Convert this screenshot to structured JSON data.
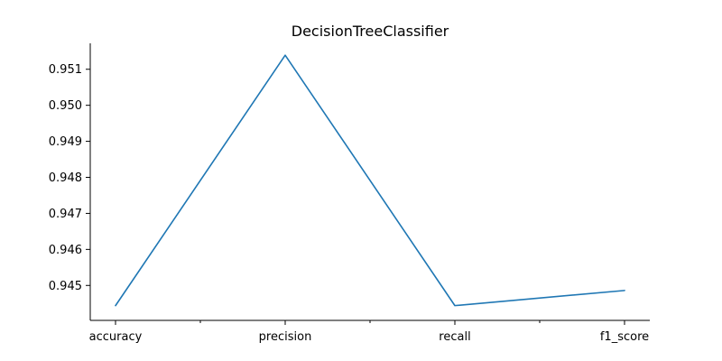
{
  "chart_data": {
    "type": "line",
    "title": "DecisionTreeClassifier",
    "xlabel": "",
    "ylabel": "",
    "categories": [
      "accuracy",
      "precision",
      "recall",
      "f1_score"
    ],
    "series": [
      {
        "values": [
          0.94444,
          0.95139,
          0.94444,
          0.94486
        ]
      }
    ],
    "ylim": [
      0.94403,
      0.95172
    ],
    "yticks": [
      "0.945",
      "0.946",
      "0.947",
      "0.948",
      "0.949",
      "0.950",
      "0.951"
    ],
    "grid": false,
    "legend": "none",
    "line_color": "#1f77b4",
    "spines": [
      "left",
      "bottom"
    ]
  }
}
